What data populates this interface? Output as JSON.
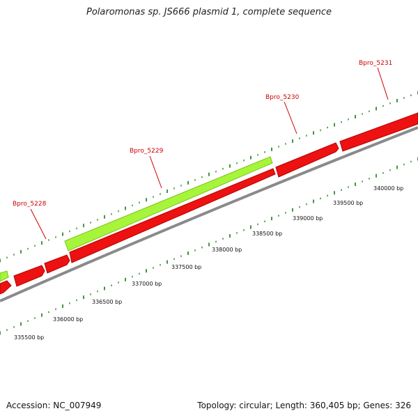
{
  "title": "Polaromonas sp. JS666 plasmid 1, complete sequence",
  "footer": {
    "accession_text": "Accession: NC_007949",
    "info_text": "Topology: circular; Length: 360,405 bp; Genes: 326"
  },
  "colors": {
    "forward_gene": "#a6f53a",
    "reverse_gene": "#ee1111",
    "backbone": "#8a8a8a",
    "tick": "#2e8b2e",
    "label": "#cc0000"
  },
  "gene_labels": [
    "Bpro_5228",
    "Bpro_5229",
    "Bpro_5230",
    "Bpro_5231"
  ],
  "position_labels": [
    "335500 bp",
    "336000 bp",
    "336500 bp",
    "337000 bp",
    "337500 bp",
    "338000 bp",
    "338500 bp",
    "339000 bp",
    "339500 bp",
    "340000 bp"
  ]
}
